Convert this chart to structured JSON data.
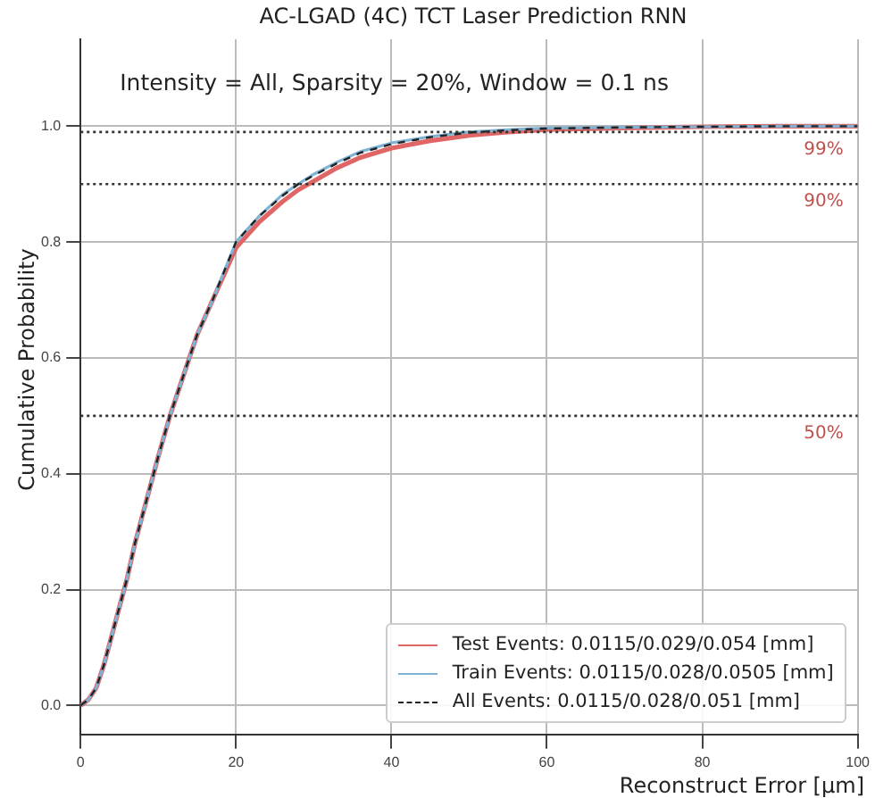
{
  "chart_data": {
    "type": "line",
    "title": "AC-LGAD (4C) TCT Laser Prediction RNN",
    "xlabel": "Reconstruct Error [µm]",
    "ylabel": "Cumulative Probability",
    "annotations": [
      "Intensity = All, Sparsity = 20%, Window = 0.1 ns"
    ],
    "x": [
      0,
      1,
      2,
      3,
      4,
      5,
      6,
      7,
      8,
      9,
      10,
      11.5,
      13,
      14,
      15,
      17,
      20,
      23,
      26,
      28,
      30,
      33,
      36,
      40,
      45,
      50,
      55,
      60,
      70,
      80,
      90,
      100
    ],
    "series": [
      {
        "name": "Test Events: 0.0115/0.029/0.054 [mm]",
        "color": "#e06666",
        "line_style": "solid",
        "values": [
          0,
          0.01,
          0.03,
          0.07,
          0.12,
          0.17,
          0.22,
          0.28,
          0.33,
          0.38,
          0.43,
          0.5,
          0.56,
          0.6,
          0.64,
          0.7,
          0.79,
          0.835,
          0.87,
          0.89,
          0.905,
          0.928,
          0.946,
          0.962,
          0.975,
          0.984,
          0.99,
          0.994,
          0.997,
          0.999,
          1,
          1
        ]
      },
      {
        "name": "Train Events: 0.0115/0.028/0.0505 [mm]",
        "color": "#7fb3d5",
        "line_style": "solid",
        "values": [
          0,
          0.01,
          0.03,
          0.07,
          0.12,
          0.17,
          0.22,
          0.28,
          0.33,
          0.38,
          0.43,
          0.5,
          0.56,
          0.6,
          0.64,
          0.7,
          0.8,
          0.845,
          0.882,
          0.9,
          0.917,
          0.938,
          0.956,
          0.971,
          0.982,
          0.99,
          0.994,
          0.997,
          0.998,
          0.999,
          1,
          1
        ]
      },
      {
        "name": "All Events: 0.0115/0.028/0.051 [mm]",
        "color": "#222222",
        "line_style": "dashed",
        "values": [
          0,
          0.01,
          0.03,
          0.07,
          0.12,
          0.17,
          0.22,
          0.28,
          0.33,
          0.38,
          0.43,
          0.5,
          0.56,
          0.6,
          0.64,
          0.7,
          0.8,
          0.845,
          0.88,
          0.9,
          0.915,
          0.936,
          0.954,
          0.969,
          0.981,
          0.989,
          0.993,
          0.996,
          0.998,
          0.999,
          1,
          1
        ]
      }
    ],
    "xlim": [
      0,
      100
    ],
    "xticks": [
      0,
      20,
      40,
      60,
      80,
      100
    ],
    "ylim": [
      -0.05,
      1.15
    ],
    "yticks": [
      {
        "value": 0,
        "label": "0.0"
      },
      0.2,
      0.4,
      0.6,
      0.8,
      {
        "value": 1,
        "label": "1.0"
      }
    ],
    "ref_lines": [
      {
        "axis": "y",
        "value": 0.99,
        "label": "99%",
        "line_style": "dotted"
      },
      {
        "axis": "y",
        "value": 0.9,
        "label": "90%",
        "line_style": "dotted"
      },
      {
        "axis": "y",
        "value": 0.5,
        "label": "50%",
        "line_style": "dotted"
      }
    ],
    "grid": true,
    "legend": "bottom right",
    "marker": "none"
  }
}
